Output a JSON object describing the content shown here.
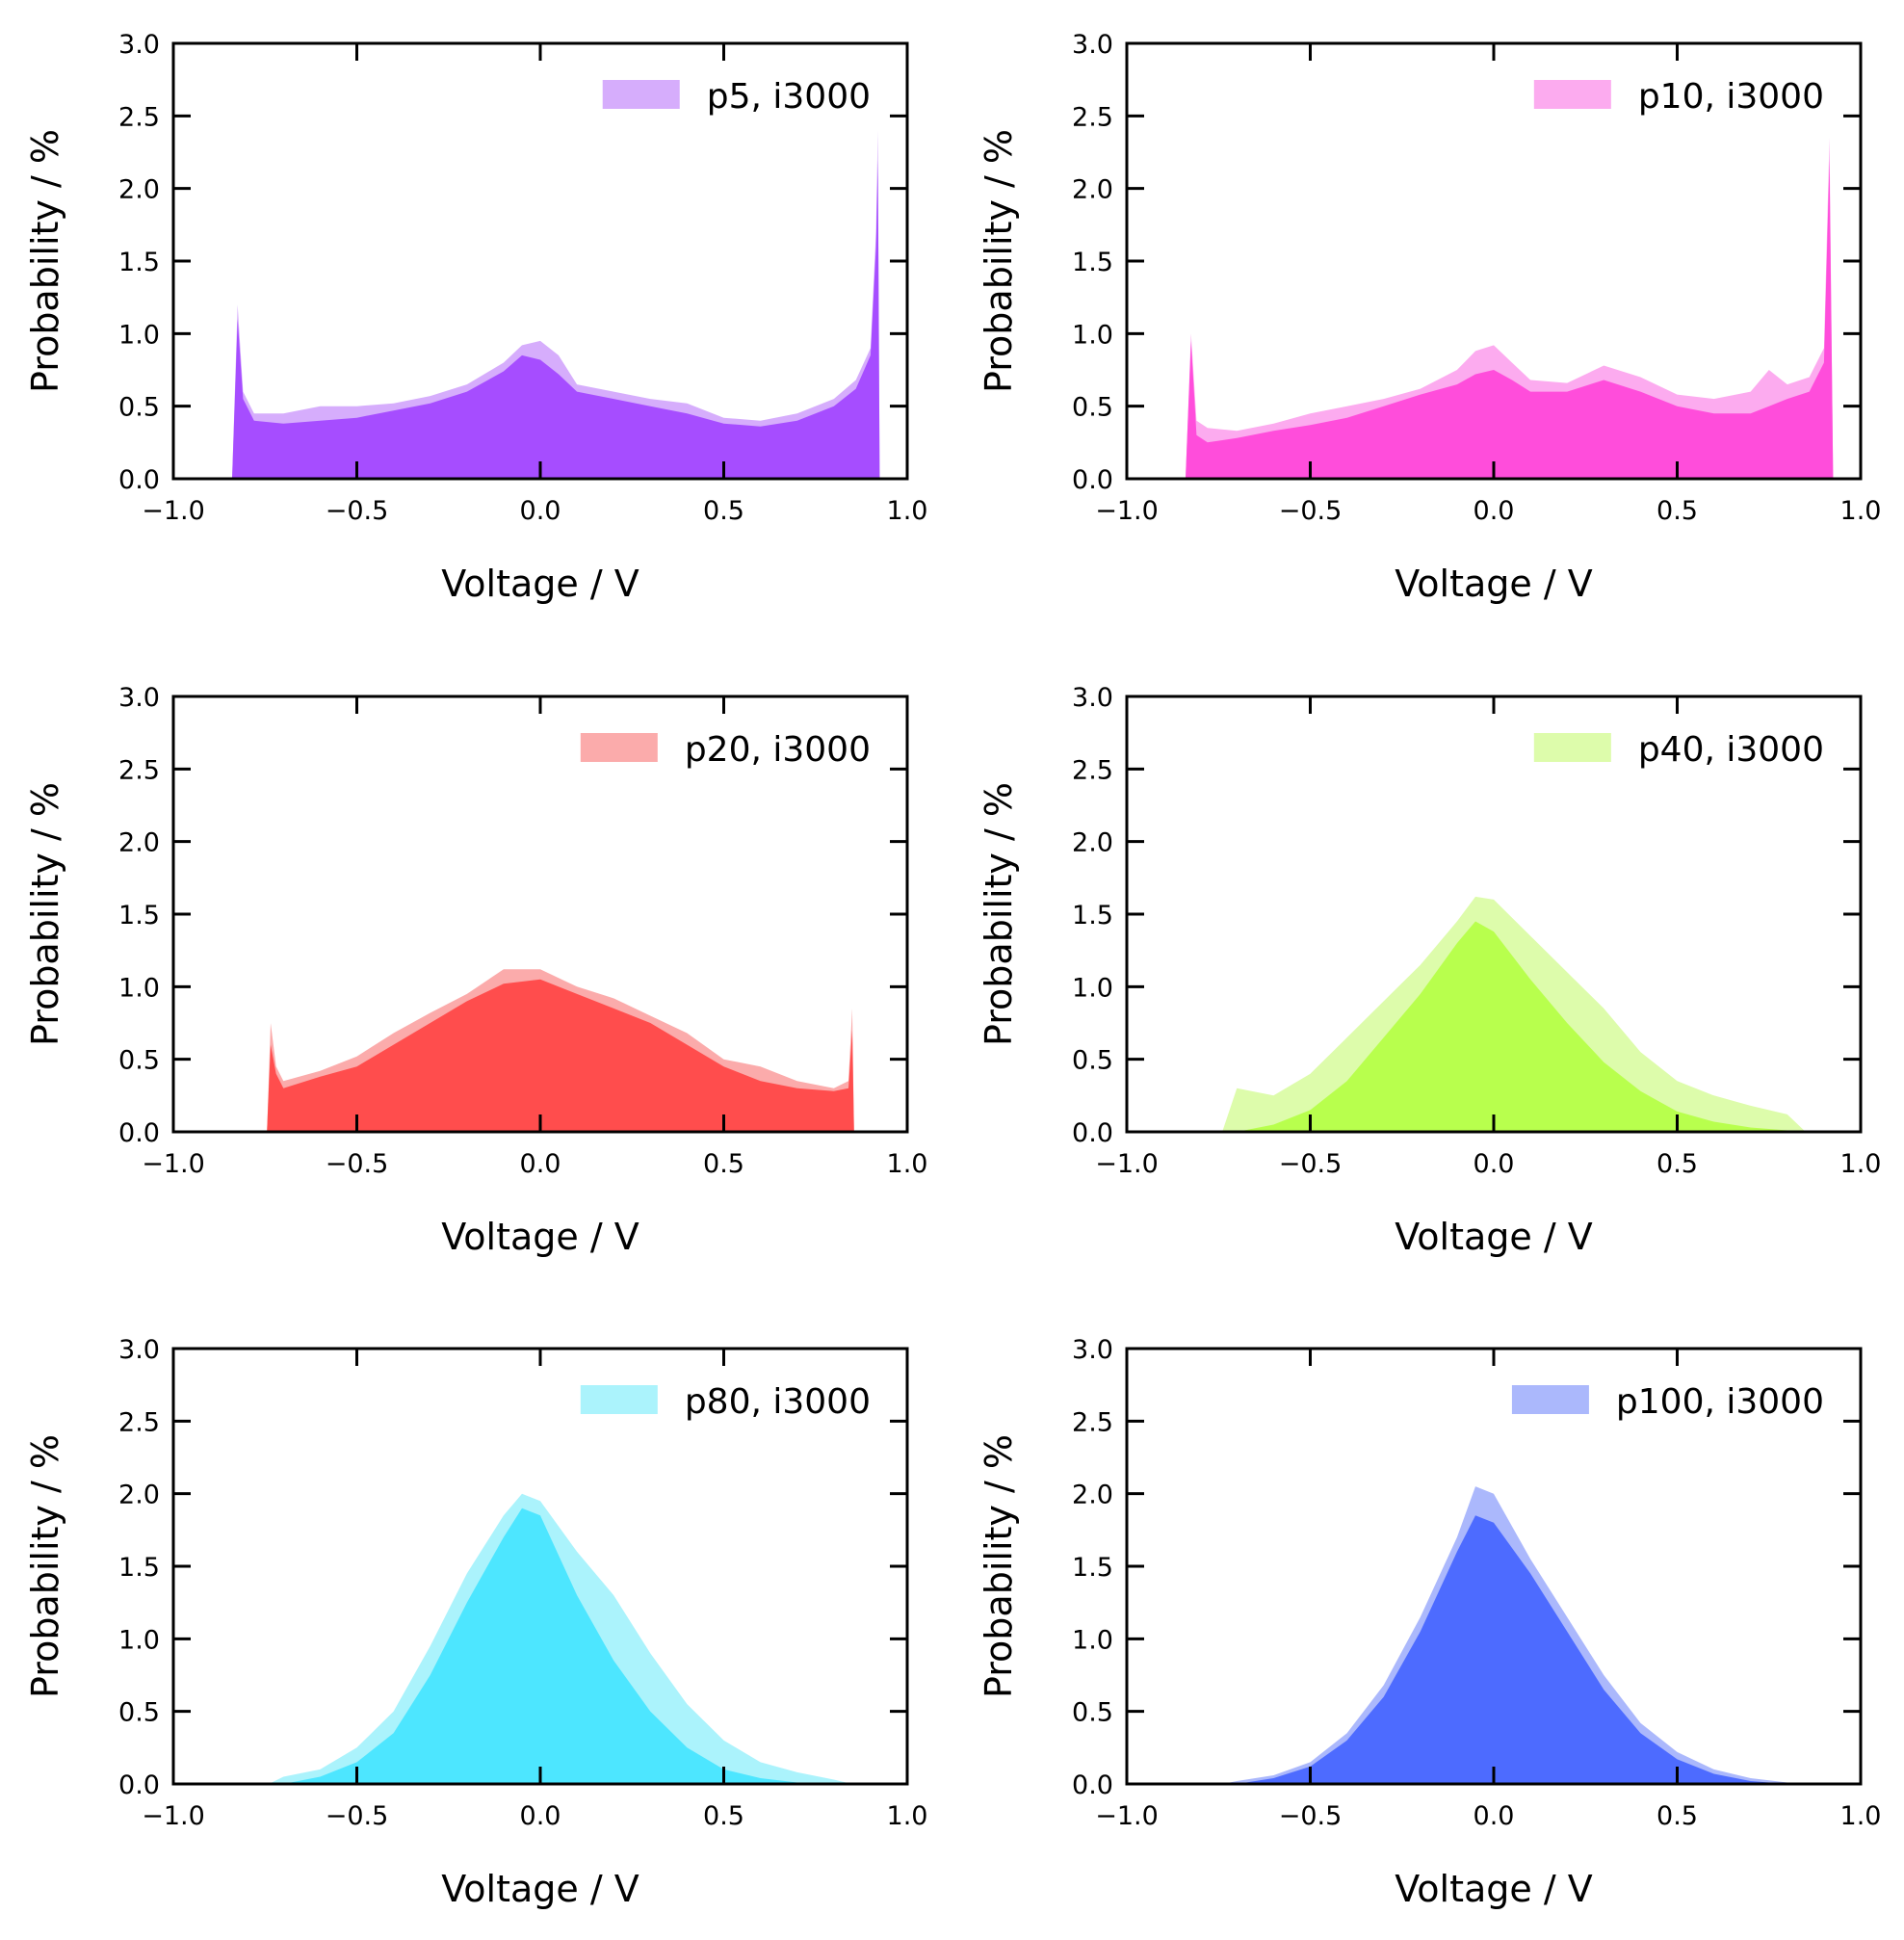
{
  "figure": {
    "shared": {
      "xlabel": "Voltage / V",
      "ylabel": "Probability / %",
      "xlim": [
        -1.0,
        1.0
      ],
      "ylim": [
        0.0,
        3.0
      ],
      "xticks": [
        -1.0,
        -0.5,
        0.0,
        0.5,
        1.0
      ],
      "xtick_labels": [
        "−1.0",
        "−0.5",
        "0.0",
        "0.5",
        "1.0"
      ],
      "yticks": [
        0.0,
        0.5,
        1.0,
        1.5,
        2.0,
        2.5,
        3.0
      ],
      "ytick_labels": [
        "0.0",
        "0.5",
        "1.0",
        "1.5",
        "2.0",
        "2.5",
        "3.0"
      ],
      "legend_position": "top-right",
      "grid": false
    }
  },
  "chart_data": [
    {
      "type": "area",
      "legend": "p5, i3000",
      "color": "#a64dff",
      "light_color": "#d6adfc",
      "xlabel": "Voltage / V",
      "ylabel": "Probability / %",
      "xlim": [
        -1.0,
        1.0
      ],
      "ylim": [
        0.0,
        3.0
      ],
      "x": [
        -0.84,
        -0.825,
        -0.81,
        -0.78,
        -0.7,
        -0.6,
        -0.5,
        -0.4,
        -0.3,
        -0.2,
        -0.1,
        -0.05,
        0.0,
        0.05,
        0.1,
        0.2,
        0.3,
        0.4,
        0.5,
        0.6,
        0.7,
        0.8,
        0.86,
        0.9,
        0.915,
        0.92,
        0.925
      ],
      "y": [
        0.0,
        1.1,
        0.55,
        0.4,
        0.38,
        0.4,
        0.42,
        0.47,
        0.52,
        0.6,
        0.74,
        0.85,
        0.82,
        0.72,
        0.6,
        0.55,
        0.5,
        0.45,
        0.38,
        0.36,
        0.4,
        0.5,
        0.62,
        0.85,
        1.6,
        2.2,
        0.0
      ],
      "y_overlay": [
        0.0,
        1.2,
        0.6,
        0.45,
        0.45,
        0.5,
        0.5,
        0.52,
        0.57,
        0.65,
        0.8,
        0.92,
        0.95,
        0.85,
        0.65,
        0.6,
        0.55,
        0.52,
        0.42,
        0.4,
        0.45,
        0.55,
        0.68,
        0.9,
        1.7,
        2.4,
        0.0
      ]
    },
    {
      "type": "area",
      "legend": "p10, i3000",
      "color": "#ff4ddb",
      "light_color": "#fcabef",
      "xlabel": "Voltage / V",
      "ylabel": "Probability / %",
      "xlim": [
        -1.0,
        1.0
      ],
      "ylim": [
        0.0,
        3.0
      ],
      "x": [
        -0.84,
        -0.825,
        -0.81,
        -0.78,
        -0.7,
        -0.6,
        -0.5,
        -0.4,
        -0.3,
        -0.2,
        -0.1,
        -0.05,
        0.0,
        0.05,
        0.1,
        0.2,
        0.3,
        0.4,
        0.5,
        0.6,
        0.7,
        0.75,
        0.8,
        0.86,
        0.9,
        0.915,
        0.925
      ],
      "y": [
        0.0,
        0.95,
        0.3,
        0.25,
        0.28,
        0.33,
        0.37,
        0.42,
        0.5,
        0.58,
        0.65,
        0.72,
        0.75,
        0.68,
        0.6,
        0.6,
        0.68,
        0.6,
        0.5,
        0.45,
        0.45,
        0.5,
        0.55,
        0.6,
        0.8,
        2.2,
        0.0
      ],
      "y_overlay": [
        0.0,
        1.0,
        0.4,
        0.35,
        0.33,
        0.38,
        0.45,
        0.5,
        0.55,
        0.62,
        0.75,
        0.88,
        0.92,
        0.8,
        0.68,
        0.66,
        0.78,
        0.7,
        0.58,
        0.55,
        0.6,
        0.75,
        0.65,
        0.7,
        0.9,
        2.35,
        0.0
      ]
    },
    {
      "type": "area",
      "legend": "p20, i3000",
      "color": "#ff4d4d",
      "light_color": "#fbabab",
      "xlabel": "Voltage / V",
      "ylabel": "Probability / %",
      "xlim": [
        -1.0,
        1.0
      ],
      "ylim": [
        0.0,
        3.0
      ],
      "x": [
        -0.745,
        -0.735,
        -0.72,
        -0.7,
        -0.6,
        -0.5,
        -0.4,
        -0.3,
        -0.2,
        -0.1,
        0.0,
        0.1,
        0.2,
        0.3,
        0.4,
        0.5,
        0.6,
        0.7,
        0.8,
        0.84,
        0.85,
        0.855
      ],
      "y": [
        0.0,
        0.6,
        0.4,
        0.3,
        0.38,
        0.45,
        0.6,
        0.75,
        0.9,
        1.02,
        1.05,
        0.95,
        0.85,
        0.75,
        0.6,
        0.45,
        0.35,
        0.3,
        0.28,
        0.3,
        0.7,
        0.0
      ],
      "y_overlay": [
        0.0,
        0.75,
        0.45,
        0.35,
        0.42,
        0.52,
        0.68,
        0.82,
        0.95,
        1.12,
        1.12,
        1.0,
        0.92,
        0.8,
        0.68,
        0.5,
        0.45,
        0.35,
        0.3,
        0.35,
        0.85,
        0.0
      ]
    },
    {
      "type": "area",
      "legend": "p40, i3000",
      "color": "#b8ff4d",
      "light_color": "#ddfcab",
      "xlabel": "Voltage / V",
      "ylabel": "Probability / %",
      "xlim": [
        -1.0,
        1.0
      ],
      "ylim": [
        0.0,
        3.0
      ],
      "x": [
        -0.74,
        -0.7,
        -0.6,
        -0.5,
        -0.4,
        -0.3,
        -0.2,
        -0.1,
        -0.05,
        0.0,
        0.1,
        0.2,
        0.3,
        0.4,
        0.5,
        0.6,
        0.7,
        0.8,
        0.85
      ],
      "y": [
        0.0,
        0.0,
        0.05,
        0.15,
        0.35,
        0.65,
        0.95,
        1.3,
        1.45,
        1.38,
        1.05,
        0.75,
        0.48,
        0.28,
        0.14,
        0.07,
        0.03,
        0.01,
        0.0
      ],
      "y_overlay": [
        0.0,
        0.3,
        0.25,
        0.4,
        0.65,
        0.9,
        1.15,
        1.45,
        1.62,
        1.6,
        1.35,
        1.1,
        0.85,
        0.55,
        0.35,
        0.25,
        0.18,
        0.12,
        0.0
      ]
    },
    {
      "type": "area",
      "legend": "p80, i3000",
      "color": "#4de6ff",
      "light_color": "#abf3fc",
      "xlabel": "Voltage / V",
      "ylabel": "Probability / %",
      "xlim": [
        -1.0,
        1.0
      ],
      "ylim": [
        0.0,
        3.0
      ],
      "x": [
        -0.74,
        -0.7,
        -0.6,
        -0.5,
        -0.4,
        -0.3,
        -0.2,
        -0.1,
        -0.05,
        0.0,
        0.1,
        0.2,
        0.3,
        0.4,
        0.5,
        0.6,
        0.7,
        0.8,
        0.85
      ],
      "y": [
        0.0,
        0.0,
        0.05,
        0.15,
        0.35,
        0.75,
        1.25,
        1.7,
        1.9,
        1.85,
        1.3,
        0.85,
        0.5,
        0.25,
        0.1,
        0.04,
        0.01,
        0.0,
        0.0
      ],
      "y_overlay": [
        0.0,
        0.05,
        0.1,
        0.25,
        0.5,
        0.95,
        1.45,
        1.85,
        2.0,
        1.95,
        1.6,
        1.3,
        0.9,
        0.55,
        0.3,
        0.15,
        0.08,
        0.03,
        0.0
      ]
    },
    {
      "type": "area",
      "legend": "p100, i3000",
      "color": "#4d6bff",
      "light_color": "#abb8fc",
      "xlabel": "Voltage / V",
      "ylabel": "Probability / %",
      "xlim": [
        -1.0,
        1.0
      ],
      "ylim": [
        0.0,
        3.0
      ],
      "x": [
        -0.74,
        -0.7,
        -0.6,
        -0.5,
        -0.4,
        -0.3,
        -0.2,
        -0.1,
        -0.05,
        0.0,
        0.1,
        0.2,
        0.3,
        0.4,
        0.5,
        0.6,
        0.7,
        0.8,
        0.82
      ],
      "y": [
        0.0,
        0.0,
        0.04,
        0.12,
        0.3,
        0.6,
        1.05,
        1.6,
        1.85,
        1.8,
        1.45,
        1.05,
        0.65,
        0.35,
        0.17,
        0.07,
        0.02,
        0.0,
        0.0
      ],
      "y_overlay": [
        0.0,
        0.02,
        0.06,
        0.15,
        0.35,
        0.68,
        1.15,
        1.7,
        2.05,
        2.0,
        1.55,
        1.15,
        0.75,
        0.42,
        0.22,
        0.1,
        0.04,
        0.01,
        0.0
      ]
    }
  ]
}
